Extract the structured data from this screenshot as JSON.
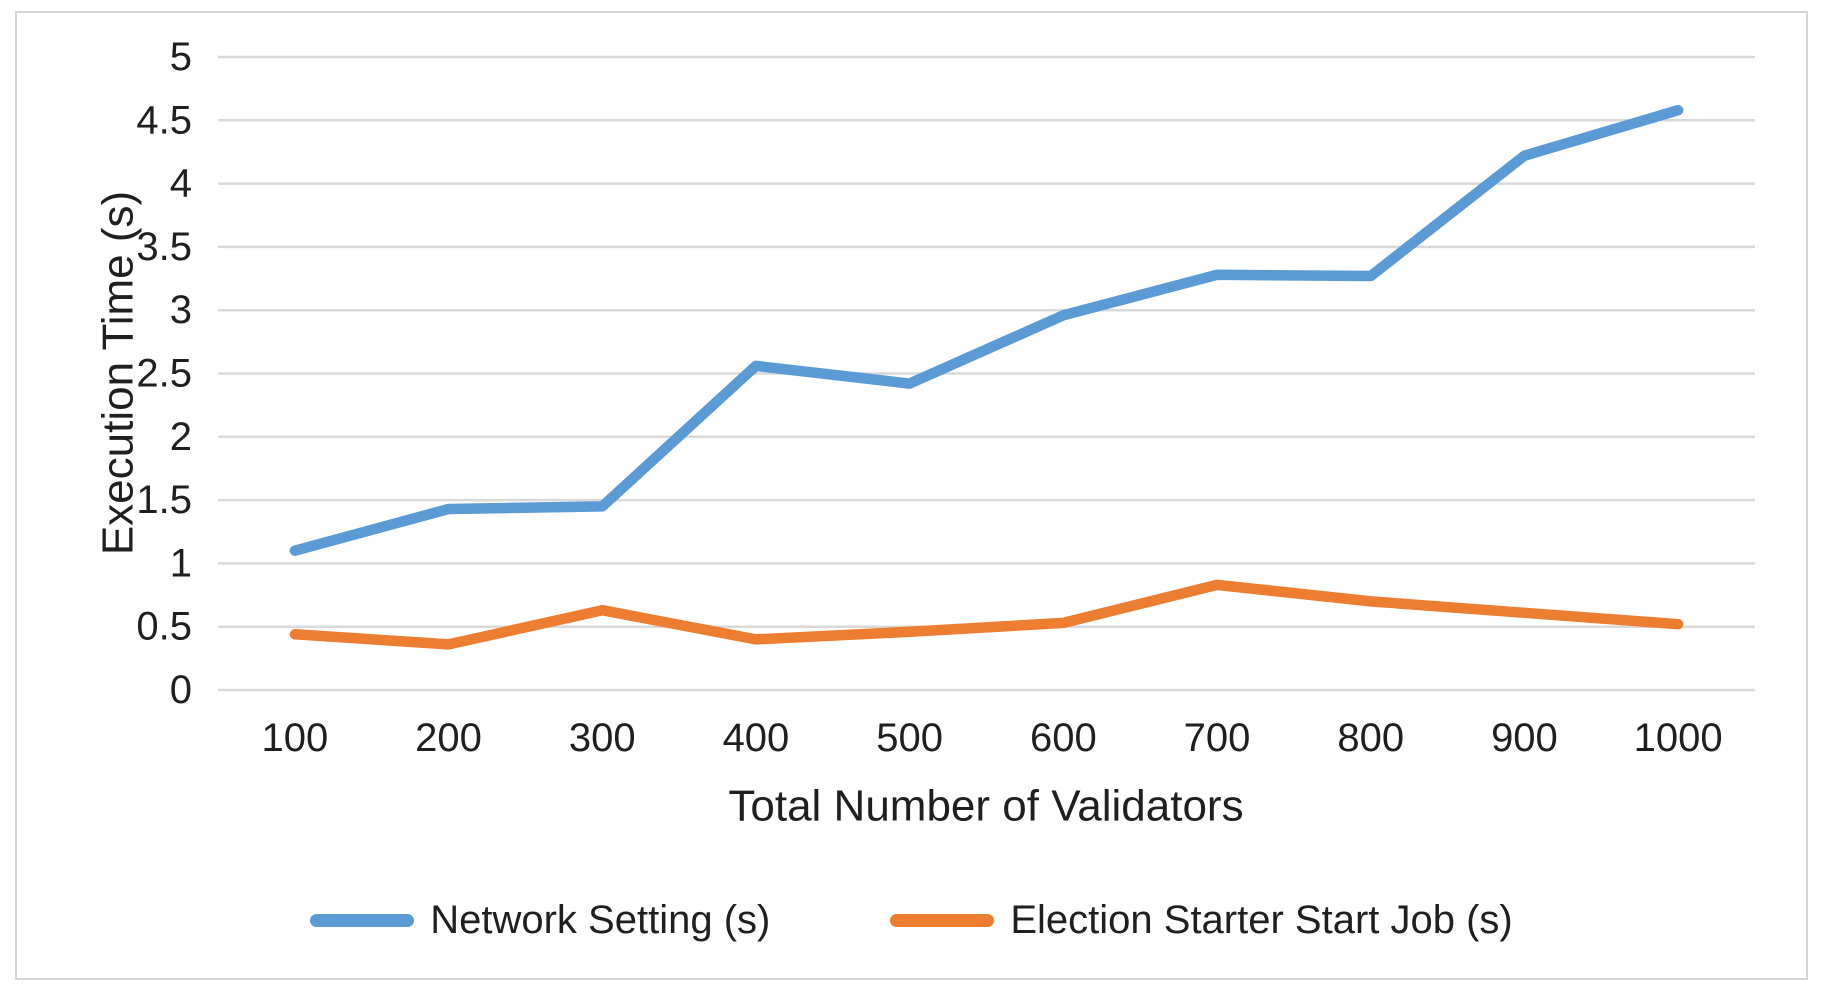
{
  "figure": {
    "background_color": "#ffffff",
    "border_color": "#d4d4d4"
  },
  "chart_data": {
    "type": "line",
    "title": "",
    "categories": [
      "100",
      "200",
      "300",
      "400",
      "500",
      "600",
      "700",
      "800",
      "900",
      "1000"
    ],
    "series": [
      {
        "name": "Network Setting (s)",
        "color": "#5B9BD5",
        "values": [
          1.1,
          1.43,
          1.45,
          2.56,
          2.42,
          2.96,
          3.28,
          3.27,
          4.22,
          4.58
        ]
      },
      {
        "name": "Election Starter Start Job (s)",
        "color": "#ED7D31",
        "values": [
          0.44,
          0.36,
          0.63,
          0.4,
          0.46,
          0.53,
          0.83,
          0.7,
          0.61,
          0.52
        ]
      }
    ],
    "xlabel": "Total Number of Validators",
    "ylabel": "Execution Time (s)",
    "ylim": [
      0,
      5
    ],
    "yticks": [
      0,
      0.5,
      1,
      1.5,
      2,
      2.5,
      3,
      3.5,
      4,
      4.5,
      5
    ],
    "ytick_labels": [
      "0",
      "0.5",
      "1",
      "1.5",
      "2",
      "2.5",
      "3",
      "3.5",
      "4",
      "4.5",
      "5"
    ],
    "grid": "horizontal",
    "gridline_color": "#d9d9d9",
    "text_color": "#1f1f1f",
    "legend_position": "bottom",
    "line_width": 10.5
  }
}
